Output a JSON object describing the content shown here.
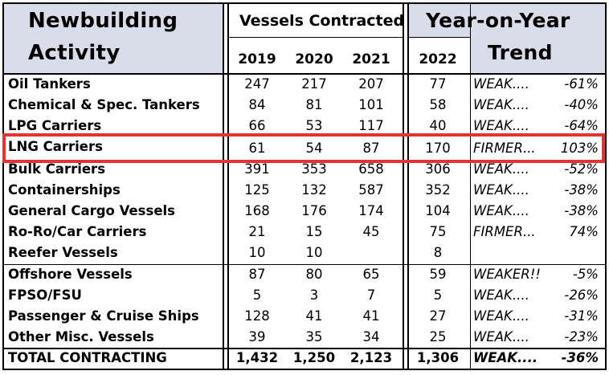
{
  "header": {
    "title_line1": "Newbuilding",
    "title_line2": "Activity",
    "vessels_contracted": "Vessels Contracted",
    "yoy": "Year-on-Year",
    "trend": "Trend",
    "years": [
      "2019",
      "2020",
      "2021",
      "2022"
    ]
  },
  "rows": [
    {
      "name": "Oil Tankers",
      "v2019": "247",
      "v2020": "217",
      "v2021": "207",
      "v2022": "77",
      "trend": "WEAK....",
      "pct": "-61%"
    },
    {
      "name": "Chemical & Spec. Tankers",
      "v2019": "84",
      "v2020": "81",
      "v2021": "101",
      "v2022": "58",
      "trend": "WEAK....",
      "pct": "-40%"
    },
    {
      "name": "LPG Carriers",
      "v2019": "66",
      "v2020": "53",
      "v2021": "117",
      "v2022": "40",
      "trend": "WEAK....",
      "pct": "-64%"
    },
    {
      "name": "LNG Carriers",
      "v2019": "61",
      "v2020": "54",
      "v2021": "87",
      "v2022": "170",
      "trend": "FIRMER...",
      "pct": "103%"
    },
    {
      "name": "Bulk Carriers",
      "v2019": "391",
      "v2020": "353",
      "v2021": "658",
      "v2022": "306",
      "trend": "WEAK....",
      "pct": "-52%"
    },
    {
      "name": "Containerships",
      "v2019": "125",
      "v2020": "132",
      "v2021": "587",
      "v2022": "352",
      "trend": "WEAK....",
      "pct": "-38%"
    },
    {
      "name": "General Cargo Vessels",
      "v2019": "168",
      "v2020": "176",
      "v2021": "174",
      "v2022": "104",
      "trend": "WEAK....",
      "pct": "-38%"
    },
    {
      "name": "Ro-Ro/Car Carriers",
      "v2019": "21",
      "v2020": "15",
      "v2021": "45",
      "v2022": "75",
      "trend": "FIRMER...",
      "pct": "74%"
    },
    {
      "name": "Reefer Vessels",
      "v2019": "10",
      "v2020": "10",
      "v2021": "",
      "v2022": "8",
      "trend": "",
      "pct": ""
    },
    {
      "name": "Offshore Vessels",
      "v2019": "87",
      "v2020": "80",
      "v2021": "65",
      "v2022": "59",
      "trend": "WEAKER!!",
      "pct": "-5%"
    },
    {
      "name": "FPSO/FSU",
      "v2019": "5",
      "v2020": "3",
      "v2021": "7",
      "v2022": "5",
      "trend": "WEAK....",
      "pct": "-26%"
    },
    {
      "name": "Passenger & Cruise Ships",
      "v2019": "128",
      "v2020": "41",
      "v2021": "41",
      "v2022": "27",
      "trend": "WEAK....",
      "pct": "-31%"
    },
    {
      "name": "Other Misc. Vessels",
      "v2019": "39",
      "v2020": "35",
      "v2021": "34",
      "v2022": "25",
      "trend": "WEAK....",
      "pct": "-23%"
    }
  ],
  "total": {
    "name": "TOTAL CONTRACTING",
    "v2019": "1,432",
    "v2020": "1,250",
    "v2021": "2,123",
    "v2022": "1,306",
    "trend": "WEAK....",
    "pct": "-36%"
  },
  "colors": {
    "header_bg": "#d9dde9",
    "highlight": "#e8322f"
  }
}
